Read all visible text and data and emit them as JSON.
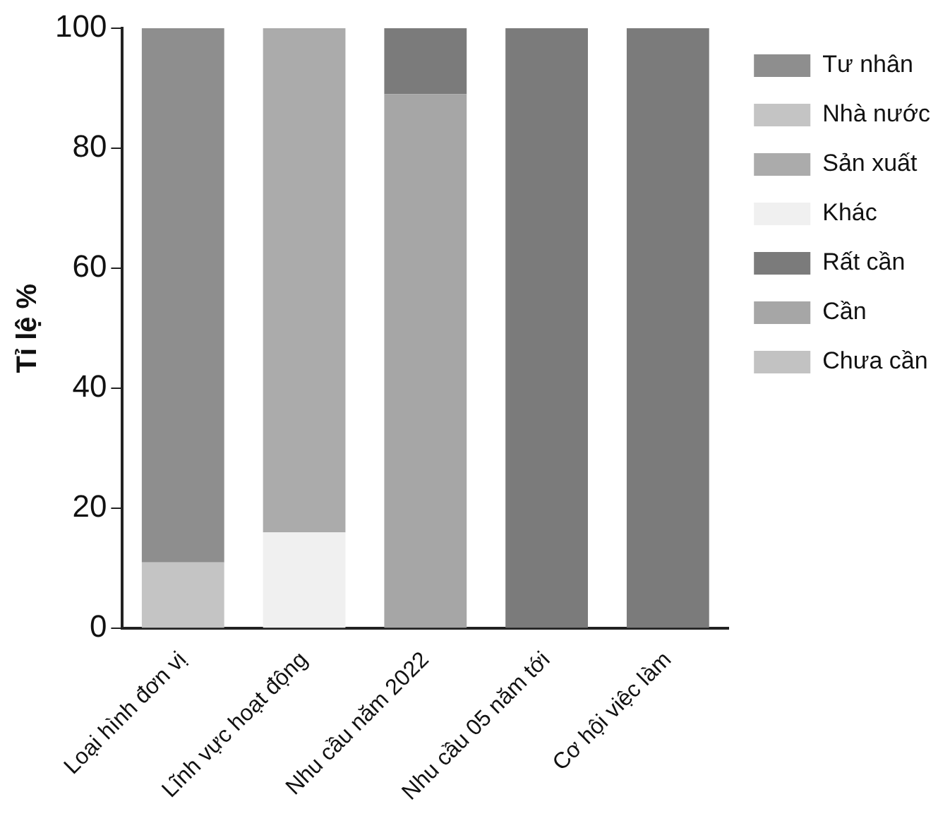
{
  "chart_data": {
    "type": "bar",
    "stacked": true,
    "ylabel": "Tỉ lệ %",
    "categories": [
      "Loại hình đơn vị",
      "Lĩnh vực hoạt động",
      "Nhu cầu năm 2022",
      "Nhu cầu 05 năm tới",
      "Cơ hội việc làm"
    ],
    "series": [
      {
        "name": "Chưa cần",
        "color": "#c2c2c2",
        "values": [
          null,
          null,
          0,
          0,
          0
        ]
      },
      {
        "name": "Cần",
        "color": "#a6a6a6",
        "values": [
          null,
          null,
          89,
          0,
          0
        ]
      },
      {
        "name": "Rất cần",
        "color": "#7b7b7b",
        "values": [
          null,
          null,
          11,
          100,
          100
        ]
      },
      {
        "name": "Khác",
        "color": "#f0f0f0",
        "values": [
          null,
          16,
          null,
          null,
          null
        ]
      },
      {
        "name": "Sản xuất",
        "color": "#ababab",
        "values": [
          null,
          84,
          null,
          null,
          null
        ]
      },
      {
        "name": "Nhà nước",
        "color": "#c4c4c4",
        "values": [
          11,
          null,
          null,
          null,
          null
        ]
      },
      {
        "name": "Tư nhân",
        "color": "#8e8e8e",
        "values": [
          89,
          null,
          null,
          null,
          null
        ]
      }
    ],
    "ylim": [
      0,
      100
    ],
    "yticks": [
      0,
      20,
      40,
      60,
      80,
      100
    ],
    "grid": false,
    "legend": "right"
  }
}
